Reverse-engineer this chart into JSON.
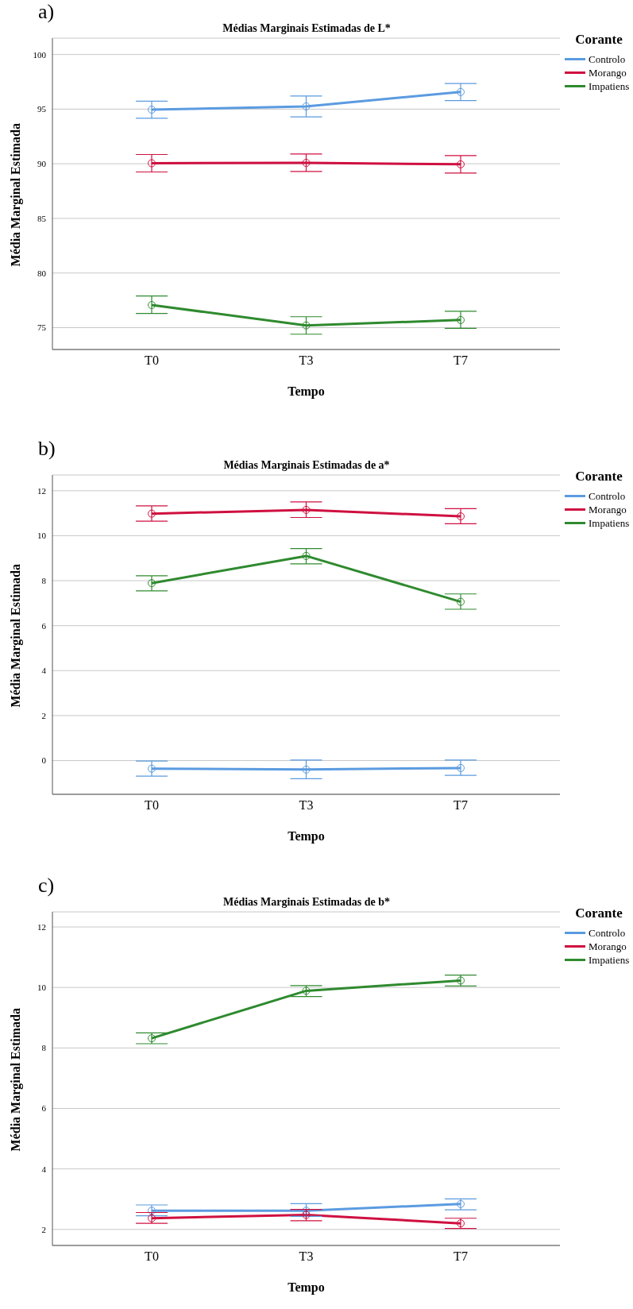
{
  "chart_data": [
    {
      "type": "line",
      "title": "Médias Marginais Estimadas de L*",
      "xlabel": "Tempo",
      "ylabel": "Média Marginal Estimada",
      "legend_title": "Corante",
      "annotations": [
        "a)"
      ],
      "categories": [
        "T0",
        "T3",
        "T7"
      ],
      "ylim": [
        73,
        101.5
      ],
      "yticks": [
        75,
        80,
        85,
        90,
        95,
        100
      ],
      "grid": "y",
      "legend": "top right",
      "marker": "circle",
      "series": [
        {
          "name": "Controlo",
          "color": "#5b9be0",
          "values": [
            94.95,
            95.25,
            96.57
          ],
          "errors": [
            [
              94.17,
              95.73
            ],
            [
              94.3,
              96.2
            ],
            [
              95.78,
              97.35
            ]
          ]
        },
        {
          "name": "Morango",
          "color": "#cf1040",
          "values": [
            90.05,
            90.08,
            89.95
          ],
          "errors": [
            [
              89.25,
              90.85
            ],
            [
              89.3,
              90.9
            ],
            [
              89.15,
              90.75
            ]
          ]
        },
        {
          "name": "Impatiens",
          "color": "#2f8a2f",
          "values": [
            77.07,
            75.2,
            75.7
          ],
          "errors": [
            [
              76.3,
              77.9
            ],
            [
              74.4,
              76.0
            ],
            [
              74.93,
              76.5
            ]
          ]
        }
      ]
    },
    {
      "type": "line",
      "title": "Médias Marginais Estimadas de a*",
      "xlabel": "Tempo",
      "ylabel": "Média Marginal Estimada",
      "legend_title": "Corante",
      "annotations": [
        "b)"
      ],
      "categories": [
        "T0",
        "T3",
        "T7"
      ],
      "ylim": [
        -1.5,
        12.7
      ],
      "yticks": [
        0,
        2,
        4,
        6,
        8,
        10,
        12
      ],
      "grid": "y",
      "legend": "top right",
      "marker": "circle",
      "series": [
        {
          "name": "Controlo",
          "color": "#5b9be0",
          "values": [
            -0.36,
            -0.4,
            -0.33
          ],
          "errors": [
            [
              -0.69,
              -0.02
            ],
            [
              -0.81,
              0.02
            ],
            [
              -0.66,
              0.02
            ]
          ]
        },
        {
          "name": "Morango",
          "color": "#cf1040",
          "values": [
            10.98,
            11.15,
            10.86
          ],
          "errors": [
            [
              10.65,
              11.33
            ],
            [
              10.81,
              11.5
            ],
            [
              10.53,
              11.2
            ]
          ]
        },
        {
          "name": "Impatiens",
          "color": "#2f8a2f",
          "values": [
            7.89,
            9.1,
            7.06
          ],
          "errors": [
            [
              7.55,
              8.22
            ],
            [
              8.75,
              9.43
            ],
            [
              6.73,
              7.41
            ]
          ]
        }
      ]
    },
    {
      "type": "line",
      "title": "Médias Marginais Estimadas de b*",
      "xlabel": "Tempo",
      "ylabel": "Média Marginal Estimada",
      "legend_title": "Corante",
      "annotations": [
        "c)"
      ],
      "categories": [
        "T0",
        "T3",
        "T7"
      ],
      "ylim": [
        1.47,
        12.5
      ],
      "yticks": [
        2,
        4,
        6,
        8,
        10,
        12
      ],
      "grid": "y",
      "legend": "top right",
      "marker": "circle",
      "series": [
        {
          "name": "Controlo",
          "color": "#5b9be0",
          "values": [
            2.62,
            2.62,
            2.84
          ],
          "errors": [
            [
              2.45,
              2.81
            ],
            [
              2.43,
              2.85
            ],
            [
              2.65,
              3.01
            ]
          ]
        },
        {
          "name": "Morango",
          "color": "#cf1040",
          "values": [
            2.37,
            2.48,
            2.2
          ],
          "errors": [
            [
              2.2,
              2.56
            ],
            [
              2.29,
              2.66
            ],
            [
              2.03,
              2.37
            ]
          ]
        },
        {
          "name": "Impatiens",
          "color": "#2f8a2f",
          "values": [
            8.32,
            9.89,
            10.23
          ],
          "errors": [
            [
              8.14,
              8.5
            ],
            [
              9.7,
              10.06
            ],
            [
              10.05,
              10.41
            ]
          ]
        }
      ]
    }
  ]
}
